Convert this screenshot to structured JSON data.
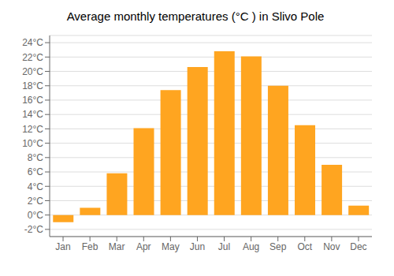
{
  "chart_data": {
    "type": "bar",
    "title": "Average monthly temperatures (°C ) in Slivo Pole",
    "categories": [
      "Jan",
      "Feb",
      "Mar",
      "Apr",
      "May",
      "Jun",
      "Jul",
      "Aug",
      "Sep",
      "Oct",
      "Nov",
      "Dec"
    ],
    "values": [
      -1.0,
      1.0,
      5.8,
      12.1,
      17.4,
      20.6,
      22.8,
      22.1,
      18.0,
      12.5,
      7.0,
      1.3
    ],
    "color": "#FFA520",
    "ylim": [
      -3,
      25
    ],
    "yticks": [
      {
        "value": -2,
        "label": "-2°C"
      },
      {
        "value": 0,
        "label": "0°C"
      },
      {
        "value": 2,
        "label": "2°C"
      },
      {
        "value": 4,
        "label": "4°C"
      },
      {
        "value": 6,
        "label": "6°C"
      },
      {
        "value": 8,
        "label": "8°C"
      },
      {
        "value": 10,
        "label": "10°C"
      },
      {
        "value": 12,
        "label": "12°C"
      },
      {
        "value": 14,
        "label": "14°C"
      },
      {
        "value": 16,
        "label": "16°C"
      },
      {
        "value": 18,
        "label": "18°C"
      },
      {
        "value": 20,
        "label": "20°C"
      },
      {
        "value": 22,
        "label": "22°C"
      },
      {
        "value": 24,
        "label": "24°C"
      }
    ],
    "grid": true
  }
}
